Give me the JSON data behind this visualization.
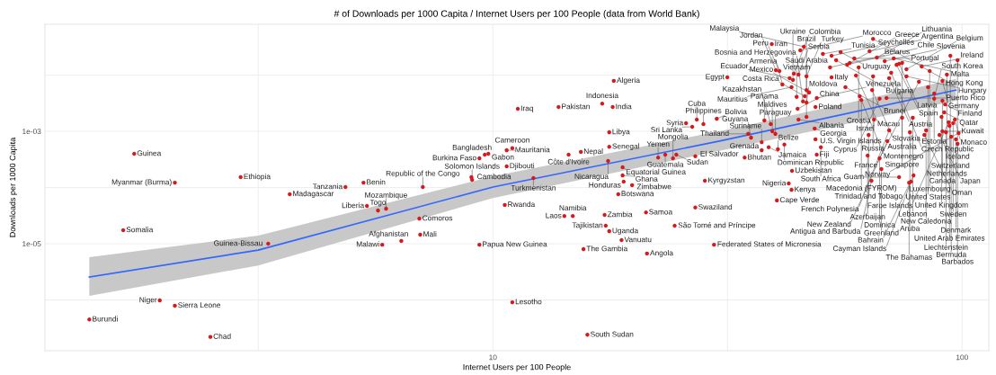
{
  "chart_data": {
    "type": "scatter",
    "title": "# of Downloads per 1000 Capita / Internet Users per 100 People (data from World Bank)",
    "xlabel": "Internet Users per 100 People",
    "ylabel": "Downloads per 1000 Capita",
    "log": "xy",
    "xlim": [
      1.11,
      114
    ],
    "ylim": [
      1.25e-07,
      0.08
    ],
    "xticks": [
      {
        "value": 3.162,
        "label": null
      },
      10,
      {
        "value": 31.62,
        "label": null
      },
      100
    ],
    "yticks": [
      {
        "value": 1e-06,
        "label": null
      },
      {
        "value": 1e-05,
        "label": "1e-05"
      },
      {
        "value": 0.0001,
        "label": null
      },
      {
        "value": 0.001,
        "label": "1e-03"
      },
      {
        "value": 0.01,
        "label": null
      }
    ],
    "grid": true,
    "marker": "circle",
    "series": [
      {
        "type": "line",
        "marker": "none",
        "color": "#3366ff",
        "x": [
          1.38,
          3.16,
          10,
          30.4,
          97
        ],
        "values": [
          2.56e-06,
          7.7e-06,
          0.000102,
          0.00067,
          0.0054
        ],
        "lower": [
          1.18e-06,
          4.1e-06,
          6.5e-05,
          0.00045,
          0.0035
        ],
        "upper": [
          5.75e-06,
          1.39e-05,
          0.000158,
          0.001,
          0.0085
        ]
      },
      {
        "color": "#d7191c",
        "x": [
          1.72,
          2.1,
          2.9,
          3.69,
          1.63,
          3.32,
          1.95,
          2.1,
          1.38,
          2.5,
          4.85,
          5.3,
          5.39,
          5.69,
          5.92,
          7.09,
          6.97,
          7.0,
          6.38,
          5.81,
          9.61,
          9.36,
          9.78,
          10.7,
          11.0,
          9.0,
          9.03,
          10.7,
          12.2,
          10.6,
          9.36,
          11.0,
          15.9,
          11.3,
          13.8,
          18.1,
          17.1,
          18.0,
          17.7,
          17.7,
          15.4,
          14.5,
          17.6,
          23.3,
          22.5,
          18.9,
          18.9,
          19.0,
          18.5,
          19.8,
          14.2,
          14.8,
          17.3,
          17.4,
          17.7,
          18.8,
          15.6,
          21.3,
          21.2,
          24.4,
          29.6,
          27.0,
          40.3,
          43.3,
          42.7,
          28.3,
          24.6,
          24.2,
          27.0,
          34.4,
          37.4,
          38.7,
          40.5,
          49.0,
          43.4,
          41.8,
          37.4,
          35.5,
          40.0,
          39.4,
          35.0,
          28.1,
          25.8,
          26.6,
          27.2,
          30.0,
          37.9,
          39.1,
          44.8,
          46.6,
          48.5,
          48.7,
          50.0,
          48.7,
          44.6,
          46.6,
          45.8,
          44.4,
          46.2,
          47.2,
          49.0,
          46.6,
          41.4,
          43.3,
          31.6,
          42.9,
          43.6,
          40.8,
          40.1,
          43.8,
          44.8,
          46.6,
          39.3,
          45.2,
          46.0,
          50.5,
          52.7,
          53.9,
          55.1,
          52.3,
          57.6,
          58.9,
          60.2,
          56.9,
          52.7,
          56.4,
          64.3,
          59.4,
          63.5,
          65.8,
          68.4,
          73.4,
          64.6,
          71.5,
          64.6,
          69.9,
          70.6,
          66.7,
          60.5,
          61.0,
          69.0,
          87.2,
          72.5,
          74.5,
          76.1,
          76.1,
          85.3,
          82.0,
          97.8,
          94.4,
          92.8,
          90.8,
          87.2,
          80.9,
          92.0,
          84.6,
          90.8,
          90.4,
          64.9,
          74.5,
          63.2,
          78.5,
          91.6,
          95.7,
          93.6,
          90.8,
          96.5,
          83.8,
          69.9,
          97.0,
          62.9,
          77.4,
          89.5,
          98.3,
          66.7,
          83.1,
          94.0,
          67.3,
          69.3,
          92.4,
          73.4,
          78.8,
          94.8,
          64.1,
          77.8,
          77.1,
          97.8
        ],
        "values": [
          0.000398,
          0.000122,
          0.000153,
          7.6e-05,
          1.74e-05,
          1e-05,
          9.8e-07,
          7.9e-07,
          4.5e-07,
          2.2e-07,
          0.000102,
          0.000122,
          4.7e-05,
          3.9e-05,
          4.2e-05,
          0.000102,
          2.8e-05,
          1.45e-05,
          1.12e-05,
          9.6e-06,
          0.000384,
          0.00033,
          0.000398,
          0.00046,
          0.0005,
          0.000153,
          0.000137,
          0.000238,
          0.000147,
          4.9e-05,
          9.6e-06,
          9.1e-07,
          2.4e-07,
          0.00251,
          0.0027,
          0.0079,
          0.0031,
          0.0027,
          0.00096,
          0.00053,
          0.00043,
          0.000384,
          0.000296,
          0.000384,
          0.00034,
          0.000229,
          0.000164,
          0.000127,
          7.6e-05,
          0.00011,
          3.1e-05,
          3.1e-05,
          3.25e-05,
          2.09e-05,
          1.67e-05,
          1.16e-05,
          8e-06,
          6.7e-06,
          3.6e-05,
          2.09e-05,
          9.6e-06,
          4.4e-05,
          5.9e-05,
          9.1e-05,
          0.000118,
          0.000132,
          0.000384,
          0.00033,
          0.00036,
          0.00034,
          0.00046,
          0.00052,
          0.00048,
          0.000384,
          0.000198,
          0.00058,
          0.00064,
          0.00077,
          0.0009,
          0.001,
          0.0009,
          0.00134,
          0.00139,
          0.0012,
          0.00161,
          0.00167,
          0.00156,
          0.00134,
          0.00161,
          0.0018,
          0.00112,
          0.00072,
          0.00052,
          0.0027,
          0.00251,
          0.00325,
          0.0034,
          0.0041,
          0.0042,
          0.0049,
          0.0039,
          0.0054,
          0.0068,
          0.0061,
          0.0091,
          0.0088,
          0.0082,
          0.0118,
          0.0122,
          0.0106,
          0.0102,
          0.0095,
          0.0356,
          0.0275,
          0.032,
          0.0238,
          0.022,
          0.0184,
          0.0256,
          0.0137,
          0.0164,
          0.0198,
          0.0137,
          0.0153,
          0.0091,
          0.0061,
          0.0054,
          0.0098,
          0.0265,
          0.0205,
          0.0177,
          0.0158,
          0.044,
          0.0198,
          0.0095,
          0.0088,
          0.011,
          0.0038,
          0.0042,
          0.0036,
          0.0039,
          0.0038,
          0.0152,
          0.0165,
          0.0127,
          0.0095,
          0.0118,
          0.0142,
          0.0184,
          0.022,
          0.0102,
          0.0079,
          0.0047,
          0.0076,
          0.003,
          0.0061,
          0.0035,
          0.0018,
          0.00161,
          0.00174,
          0.00086,
          0.00174,
          0.00217,
          0.00139,
          0.00145,
          0.001,
          0.00161,
          0.00104,
          0.00104,
          0.00072,
          0.00037,
          0.00096,
          0.00086,
          0.00093,
          0.00033,
          0.00086,
          0.00125,
          0.000213,
          0.00067,
          0.00096,
          0.000153,
          0.000164,
          0.0008,
          0.000132,
          0.000127,
          0.000122,
          0.0006
        ]
      }
    ],
    "annotations": [
      {
        "text": "Guinea",
        "x": 1.72,
        "y": 0.000398
      },
      {
        "text": "Myanmar (Burma)",
        "x": 2.1,
        "y": 0.000122
      },
      {
        "text": "Ethiopia",
        "x": 2.9,
        "y": 0.000153
      },
      {
        "text": "Madagascar",
        "x": 3.69,
        "y": 7.6e-05
      },
      {
        "text": "Somalia",
        "x": 1.63,
        "y": 1.74e-05
      },
      {
        "text": "Guinea-Bissau",
        "x": 3.32,
        "y": 1e-05
      },
      {
        "text": "Niger",
        "x": 1.95,
        "y": 9.8e-07
      },
      {
        "text": "Sierra Leone",
        "x": 2.1,
        "y": 7.9e-07
      },
      {
        "text": "Burundi",
        "x": 1.38,
        "y": 4.5e-07
      },
      {
        "text": "Chad",
        "x": 2.5,
        "y": 2.2e-07
      },
      {
        "text": "Tanzania",
        "x": 4.85,
        "y": 0.000102
      },
      {
        "text": "Benin",
        "x": 5.3,
        "y": 0.000122
      },
      {
        "text": "Liberia",
        "x": 5.39,
        "y": 4.7e-05
      },
      {
        "text": "Togo",
        "x": 5.69,
        "y": 3.9e-05
      },
      {
        "text": "Mozambique",
        "x": 5.92,
        "y": 4.2e-05
      },
      {
        "text": "Republic of the Congo",
        "x": 7.09,
        "y": 0.000102
      },
      {
        "text": "Comoros",
        "x": 6.97,
        "y": 2.8e-05
      },
      {
        "text": "Mali",
        "x": 7.0,
        "y": 1.45e-05
      },
      {
        "text": "Afghanistan",
        "x": 6.38,
        "y": 1.12e-05
      },
      {
        "text": "Malawi",
        "x": 5.81,
        "y": 9.6e-06
      },
      {
        "text": "Bangladesh",
        "x": 9.61,
        "y": 0.000384
      },
      {
        "text": "Burkina Faso",
        "x": 9.36,
        "y": 0.00033
      },
      {
        "text": "Gabon",
        "x": 9.78,
        "y": 0.000398
      },
      {
        "text": "Mauritania",
        "x": 10.7,
        "y": 0.00046
      },
      {
        "text": "Cameroon",
        "x": 11.0,
        "y": 0.0005
      },
      {
        "text": "Cambodia",
        "x": 9.0,
        "y": 0.000153
      },
      {
        "text": "Solomon Islands",
        "x": 9.03,
        "y": 0.000137
      },
      {
        "text": "Djibouti",
        "x": 10.7,
        "y": 0.000238
      },
      {
        "text": "Turkmenistan",
        "x": 12.2,
        "y": 0.000147
      },
      {
        "text": "Rwanda",
        "x": 10.6,
        "y": 4.9e-05
      },
      {
        "text": "Papua New Guinea",
        "x": 9.36,
        "y": 9.6e-06
      },
      {
        "text": "Lesotho",
        "x": 11.0,
        "y": 9.1e-07
      },
      {
        "text": "South Sudan",
        "x": 15.9,
        "y": 2.4e-07
      },
      {
        "text": "Iraq",
        "x": 11.3,
        "y": 0.00251
      },
      {
        "text": "Pakistan",
        "x": 13.8,
        "y": 0.0027
      },
      {
        "text": "Algeria",
        "x": 18.1,
        "y": 0.0079
      },
      {
        "text": "Indonesia",
        "x": 17.1,
        "y": 0.0031
      },
      {
        "text": "India",
        "x": 18.0,
        "y": 0.0027
      },
      {
        "text": "Libya",
        "x": 17.7,
        "y": 0.00096
      },
      {
        "text": "Senegal",
        "x": 17.7,
        "y": 0.00053
      },
      {
        "text": "Nepal",
        "x": 15.4,
        "y": 0.00043
      },
      {
        "text": "Côte d'Ivoire",
        "x": 14.5,
        "y": 0.000384
      },
      {
        "text": "Nicaragua",
        "x": 17.6,
        "y": 0.000296
      },
      {
        "text": "Guatemala",
        "x": 23.3,
        "y": 0.000384
      },
      {
        "text": "Yemen",
        "x": 22.5,
        "y": 0.00034
      },
      {
        "text": "Equatorial Guinea",
        "x": 18.9,
        "y": 0.000229
      },
      {
        "text": "Ghana",
        "x": 18.9,
        "y": 0.000164
      },
      {
        "text": "Honduras",
        "x": 19.0,
        "y": 0.000127
      },
      {
        "text": "Botswana",
        "x": 18.5,
        "y": 7.6e-05
      },
      {
        "text": "Zimbabwe",
        "x": 19.8,
        "y": 0.00011
      },
      {
        "text": "Laos",
        "x": 14.2,
        "y": 3.1e-05
      },
      {
        "text": "Namibia",
        "x": 14.8,
        "y": 3.1e-05
      },
      {
        "text": "Zambia",
        "x": 17.3,
        "y": 3.25e-05
      },
      {
        "text": "Tajikistan",
        "x": 17.4,
        "y": 2.09e-05
      },
      {
        "text": "Uganda",
        "x": 17.7,
        "y": 1.67e-05
      },
      {
        "text": "Vanuatu",
        "x": 18.8,
        "y": 1.16e-05
      },
      {
        "text": "The Gambia",
        "x": 15.6,
        "y": 8e-06
      },
      {
        "text": "Angola",
        "x": 21.3,
        "y": 6.7e-06
      },
      {
        "text": "Samoa",
        "x": 21.2,
        "y": 3.6e-05
      },
      {
        "text": "São Tomé and Príncipe",
        "x": 24.4,
        "y": 2.09e-05
      },
      {
        "text": "Federated States of Micronesia",
        "x": 29.6,
        "y": 9.6e-06
      },
      {
        "text": "Swaziland",
        "x": 27.0,
        "y": 4.4e-05
      },
      {
        "text": "Cape Verde",
        "x": 40.3,
        "y": 5.9e-05
      },
      {
        "text": "Kenya",
        "x": 43.3,
        "y": 9.1e-05
      },
      {
        "text": "Nigeria",
        "x": 42.7,
        "y": 0.000118
      },
      {
        "text": "Kyrgyzstan",
        "x": 28.3,
        "y": 0.000132
      },
      {
        "text": "Sudan",
        "x": 24.6,
        "y": 0.000384
      },
      {
        "text": "Mongolia",
        "x": 24.2,
        "y": 0.00033
      },
      {
        "text": "El Salvador",
        "x": 27.0,
        "y": 0.00036
      },
      {
        "text": "Bhutan",
        "x": 34.4,
        "y": 0.00034
      },
      {
        "text": "Grenada",
        "x": 37.4,
        "y": 0.00046
      },
      {
        "text": "Jamaica",
        "x": 38.7,
        "y": 0.00052
      },
      {
        "text": "Belize",
        "x": 40.5,
        "y": 0.00048
      },
      {
        "text": "Fiji",
        "x": 49.0,
        "y": 0.000384
      },
      {
        "text": "Uzbekistan",
        "x": 43.4,
        "y": 0.000198
      },
      {
        "text": "Dominican Republic",
        "x": 41.8,
        "y": 0.00058
      },
      {
        "text": "Suriname",
        "x": 37.4,
        "y": 0.00064
      },
      {
        "text": "Guyana",
        "x": 35.5,
        "y": 0.00077
      },
      {
        "text": "Paraguay",
        "x": 40.0,
        "y": 0.0009
      },
      {
        "text": "Maldives",
        "x": 39.4,
        "y": 0.001
      },
      {
        "text": "Thailand",
        "x": 35.0,
        "y": 0.0009
      },
      {
        "text": "Philippines",
        "x": 28.1,
        "y": 0.00134
      },
      {
        "text": "Syria",
        "x": 25.8,
        "y": 0.00139
      },
      {
        "text": "Sri Lanka",
        "x": 26.6,
        "y": 0.0012
      },
      {
        "text": "Cuba",
        "x": 27.2,
        "y": 0.00161
      },
      {
        "text": "Bolivia",
        "x": 30.0,
        "y": 0.00167
      },
      {
        "text": "Panama",
        "x": 37.9,
        "y": 0.00156
      },
      {
        "text": "Kazakhstan",
        "x": 39.1,
        "y": 0.00134
      },
      {
        "text": "Albania",
        "x": 44.8,
        "y": 0.00161
      },
      {
        "text": "Saudi Arabia",
        "x": 46.6,
        "y": 0.0018
      },
      {
        "text": "Georgia",
        "x": 48.5,
        "y": 0.00112
      },
      {
        "text": "U.S. Virgin Islands",
        "x": 48.7,
        "y": 0.00072
      },
      {
        "text": "South Africa",
        "x": 50.0,
        "y": 0.00052
      },
      {
        "text": "Poland",
        "x": 48.7,
        "y": 0.0027
      },
      {
        "text": "China",
        "x": 44.6,
        "y": 0.00251
      },
      {
        "text": "Moldova",
        "x": 46.6,
        "y": 0.00325
      },
      {
        "text": "Bosnia and Herzegovina",
        "x": 45.8,
        "y": 0.0034
      },
      {
        "text": "Vietnam",
        "x": 44.4,
        "y": 0.0041
      },
      {
        "text": "Costa Rica",
        "x": 46.2,
        "y": 0.0042
      },
      {
        "text": "Mexico",
        "x": 47.2,
        "y": 0.0049
      },
      {
        "text": "Venezuela",
        "x": 49.0,
        "y": 0.0039
      },
      {
        "text": "Brazil",
        "x": 46.6,
        "y": 0.0054
      },
      {
        "text": "Armenia",
        "x": 41.4,
        "y": 0.0068
      },
      {
        "text": "Mauritius",
        "x": 43.3,
        "y": 0.0061
      },
      {
        "text": "Egypt",
        "x": 31.6,
        "y": 0.0091
      },
      {
        "text": "Ecuador",
        "x": 42.9,
        "y": 0.0088
      },
      {
        "text": "Ukraine",
        "x": 43.6,
        "y": 0.0082
      },
      {
        "text": "Peru",
        "x": 40.8,
        "y": 0.0118
      },
      {
        "text": "Jordan",
        "x": 40.1,
        "y": 0.0122
      },
      {
        "text": "Colombia",
        "x": 43.8,
        "y": 0.0106
      },
      {
        "text": "Serbia",
        "x": 44.8,
        "y": 0.0102
      },
      {
        "text": "Turkey",
        "x": 46.6,
        "y": 0.0095
      },
      {
        "text": "Iran",
        "x": 39.3,
        "y": 0.0356
      },
      {
        "text": "Morocco",
        "x": 45.2,
        "y": 0.0275
      },
      {
        "text": "Malaysia",
        "x": 46.0,
        "y": 0.032
      },
      {
        "text": "Tunisia",
        "x": 50.5,
        "y": 0.0238
      },
      {
        "text": "Seychelles",
        "x": 52.7,
        "y": 0.022
      },
      {
        "text": "Bulgaria",
        "x": 53.9,
        "y": 0.0184
      },
      {
        "text": "Uruguay",
        "x": 55.1,
        "y": 0.0256
      },
      {
        "text": "Belarus",
        "x": 52.3,
        "y": 0.0137
      },
      {
        "text": "Greece",
        "x": 57.6,
        "y": 0.0164
      },
      {
        "text": "Portugal",
        "x": 58.9,
        "y": 0.0198
      },
      {
        "text": "Croatia",
        "x": 60.2,
        "y": 0.0137
      },
      {
        "text": "Chile",
        "x": 56.9,
        "y": 0.0153
      },
      {
        "text": "Italy",
        "x": 52.7,
        "y": 0.0091
      },
      {
        "text": "Brunei",
        "x": 56.4,
        "y": 0.0061
      },
      {
        "text": "Slovakia",
        "x": 64.3,
        "y": 0.0054
      },
      {
        "text": "Macau",
        "x": 59.4,
        "y": 0.0098
      },
      {
        "text": "Argentina",
        "x": 63.5,
        "y": 0.0265
      },
      {
        "text": "Lithuania",
        "x": 65.8,
        "y": 0.0205
      },
      {
        "text": "Slovenia",
        "x": 68.4,
        "y": 0.0177
      },
      {
        "text": "Latvia",
        "x": 73.4,
        "y": 0.0158
      },
      {
        "text": "Hong Kong",
        "x": 64.6,
        "y": 0.044
      },
      {
        "text": "Malta",
        "x": 71.5,
        "y": 0.0198
      },
      {
        "text": "Russia",
        "x": 64.6,
        "y": 0.0095
      },
      {
        "text": "Austria",
        "x": 69.9,
        "y": 0.0088
      },
      {
        "text": "Czech Republic",
        "x": 70.6,
        "y": 0.011
      },
      {
        "text": "Cyprus",
        "x": 66.7,
        "y": 0.0038
      },
      {
        "text": "Montenegro",
        "x": 60.5,
        "y": 0.0042
      },
      {
        "text": "Macedonia (FYROM)",
        "x": 61.0,
        "y": 0.0036
      },
      {
        "text": "Puerto Rico",
        "x": 69.0,
        "y": 0.0039
      },
      {
        "text": "South Korea",
        "x": 87.2,
        "y": 0.0038
      },
      {
        "text": "Spain",
        "x": 72.5,
        "y": 0.0152
      },
      {
        "text": "Singapore",
        "x": 74.5,
        "y": 0.0165
      },
      {
        "text": "Belgium",
        "x": 76.1,
        "y": 0.0127
      },
      {
        "text": "Hungary",
        "x": 76.1,
        "y": 0.0095
      },
      {
        "text": "Luxembourg",
        "x": 85.3,
        "y": 0.0118
      },
      {
        "text": "Ireland",
        "x": 82.0,
        "y": 0.0142
      },
      {
        "text": "Iceland",
        "x": 97.8,
        "y": 0.0184
      },
      {
        "text": "Switzerland",
        "x": 94.4,
        "y": 0.022
      },
      {
        "text": "Netherlands",
        "x": 92.8,
        "y": 0.0102
      },
      {
        "text": "Germany",
        "x": 90.8,
        "y": 0.0079
      },
      {
        "text": "Estonia",
        "x": 87.2,
        "y": 0.0047
      },
      {
        "text": "France",
        "x": 80.9,
        "y": 0.0076
      },
      {
        "text": "Finland",
        "x": 92.0,
        "y": 0.003
      },
      {
        "text": "United States",
        "x": 84.6,
        "y": 0.0061
      },
      {
        "text": "Canada",
        "x": 90.8,
        "y": 0.0035
      },
      {
        "text": "United Kingdom",
        "x": 90.4,
        "y": 0.0018
      },
      {
        "text": "Israel",
        "x": 64.9,
        "y": 0.00161
      },
      {
        "text": "Australia",
        "x": 74.5,
        "y": 0.00174
      },
      {
        "text": "Trinidad and Tobago",
        "x": 63.2,
        "y": 0.00086
      },
      {
        "text": "Lebanon",
        "x": 78.5,
        "y": 0.00174
      },
      {
        "text": "Qatar",
        "x": 91.6,
        "y": 0.00217
      },
      {
        "text": "Sweden",
        "x": 95.7,
        "y": 0.00139
      },
      {
        "text": "Faroe Islands",
        "x": 93.6,
        "y": 0.00145
      },
      {
        "text": "Kuwait",
        "x": 90.8,
        "y": 0.001
      },
      {
        "text": "Monaco",
        "x": 96.5,
        "y": 0.00161
      },
      {
        "text": "New Caledonia",
        "x": 83.8,
        "y": 0.00104
      },
      {
        "text": "French Polynesia",
        "x": 69.9,
        "y": 0.00104
      },
      {
        "text": "Denmark",
        "x": 97.0,
        "y": 0.00072
      },
      {
        "text": "Azerbaijan",
        "x": 62.9,
        "y": 0.00037
      },
      {
        "text": "Aruba",
        "x": 77.4,
        "y": 0.00096
      },
      {
        "text": "Japan",
        "x": 89.5,
        "y": 0.00086
      },
      {
        "text": "Norway",
        "x": 98.3,
        "y": 0.00093
      },
      {
        "text": "Dominica",
        "x": 66.7,
        "y": 0.00033
      },
      {
        "text": "Oman",
        "x": 83.1,
        "y": 0.00086
      },
      {
        "text": "United Arab Emirates",
        "x": 94.0,
        "y": 0.00125
      },
      {
        "text": "Greenland",
        "x": 67.3,
        "y": 0.000213
      },
      {
        "text": "New Zealand",
        "x": 69.3,
        "y": 0.00067
      },
      {
        "text": "Liechtenstein",
        "x": 92.4,
        "y": 0.00096
      },
      {
        "text": "Guam",
        "x": 73.4,
        "y": 0.000153
      },
      {
        "text": "Bahrain",
        "x": 78.8,
        "y": 0.000164
      },
      {
        "text": "Bermuda",
        "x": 94.8,
        "y": 0.0008
      },
      {
        "text": "Antigua and Barbuda",
        "x": 64.1,
        "y": 0.000132
      },
      {
        "text": "Cayman Islands",
        "x": 77.8,
        "y": 0.000127
      },
      {
        "text": "The Bahamas",
        "x": 77.1,
        "y": 0.000122
      },
      {
        "text": "Barbados",
        "x": 97.8,
        "y": 0.0006
      }
    ]
  }
}
